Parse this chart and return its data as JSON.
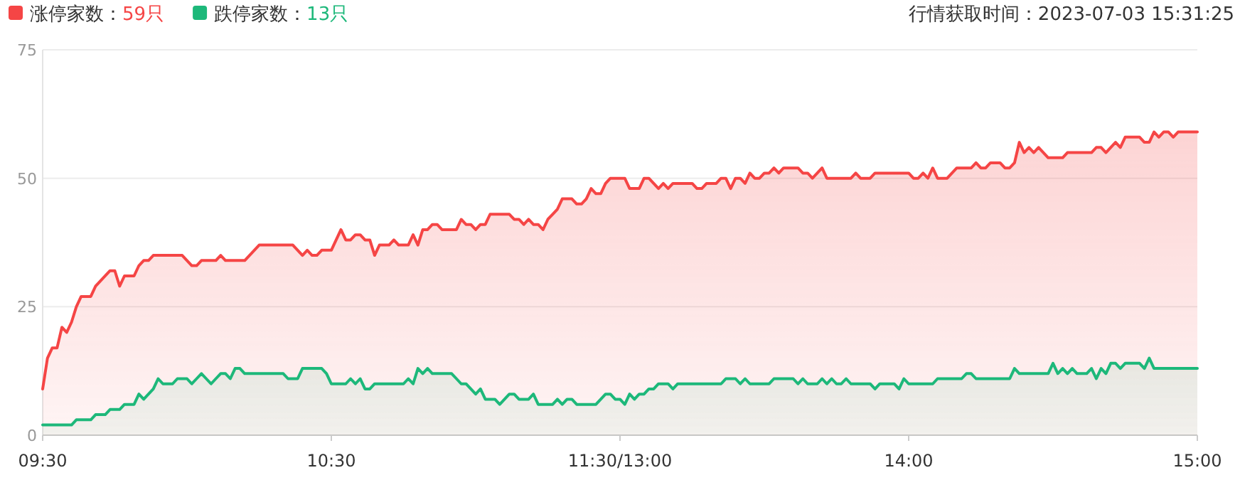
{
  "chart_data": {
    "type": "area",
    "title": "行情获取时间：2023-07-03 15:31:25",
    "categories": [
      "09:30",
      null,
      null,
      null,
      null,
      null,
      null,
      null,
      null,
      null,
      null,
      null,
      null,
      null,
      null,
      null,
      null,
      null,
      null,
      null,
      null,
      null,
      null,
      null,
      null,
      null,
      null,
      null,
      null,
      null,
      null,
      null,
      null,
      null,
      null,
      null,
      null,
      null,
      null,
      null,
      null,
      null,
      null,
      null,
      null,
      null,
      null,
      null,
      null,
      null,
      null,
      null,
      null,
      null,
      null,
      null,
      null,
      null,
      null,
      null,
      "10:30",
      null,
      null,
      null,
      null,
      null,
      null,
      null,
      null,
      null,
      null,
      null,
      null,
      null,
      null,
      null,
      null,
      null,
      null,
      null,
      null,
      null,
      null,
      null,
      null,
      null,
      null,
      null,
      null,
      null,
      null,
      null,
      null,
      null,
      null,
      null,
      null,
      null,
      null,
      null,
      null,
      null,
      null,
      null,
      null,
      null,
      null,
      null,
      null,
      null,
      null,
      null,
      null,
      null,
      null,
      null,
      null,
      null,
      null,
      null,
      "11:30/13:00",
      null,
      null,
      null,
      null,
      null,
      null,
      null,
      null,
      null,
      null,
      null,
      null,
      null,
      null,
      null,
      null,
      null,
      null,
      null,
      null,
      null,
      null,
      null,
      null,
      null,
      null,
      null,
      null,
      null,
      null,
      null,
      null,
      null,
      null,
      null,
      null,
      null,
      null,
      null,
      null,
      null,
      null,
      null,
      null,
      null,
      null,
      null,
      null,
      null,
      null,
      null,
      null,
      null,
      null,
      null,
      null,
      null,
      null,
      null,
      "14:00",
      null,
      null,
      null,
      null,
      null,
      null,
      null,
      null,
      null,
      null,
      null,
      null,
      null,
      null,
      null,
      null,
      null,
      null,
      null,
      null,
      null,
      null,
      null,
      null,
      null,
      null,
      null,
      null,
      null,
      null,
      null,
      null,
      null,
      null,
      null,
      null,
      null,
      null,
      null,
      null,
      null,
      null,
      null,
      null,
      null,
      null,
      null,
      null,
      null,
      null,
      null,
      null,
      null,
      null,
      null,
      null,
      null,
      null,
      null,
      "15:00"
    ],
    "ylim": [
      0,
      75
    ],
    "yticks": [
      0,
      25,
      50,
      75
    ],
    "grid": "y",
    "legend": "top left",
    "series": [
      {
        "name": "涨停家数：59只",
        "color": "#f54545",
        "values": [
          9,
          15,
          17,
          17,
          21,
          20,
          22,
          25,
          27,
          27,
          27,
          29,
          30,
          31,
          32,
          32,
          29,
          31,
          31,
          31,
          33,
          34,
          34,
          35,
          35,
          35,
          35,
          35,
          35,
          35,
          34,
          33,
          33,
          34,
          34,
          34,
          34,
          35,
          34,
          34,
          34,
          34,
          34,
          35,
          36,
          37,
          37,
          37,
          37,
          37,
          37,
          37,
          37,
          36,
          35,
          36,
          35,
          35,
          36,
          36,
          36,
          38,
          40,
          38,
          38,
          39,
          39,
          38,
          38,
          35,
          37,
          37,
          37,
          38,
          37,
          37,
          37,
          39,
          37,
          40,
          40,
          41,
          41,
          40,
          40,
          40,
          40,
          42,
          41,
          41,
          40,
          41,
          41,
          43,
          43,
          43,
          43,
          43,
          42,
          42,
          41,
          42,
          41,
          41,
          40,
          42,
          43,
          44,
          46,
          46,
          46,
          45,
          45,
          46,
          48,
          47,
          47,
          49,
          50,
          50,
          50,
          50,
          48,
          48,
          48,
          50,
          50,
          49,
          48,
          49,
          48,
          49,
          49,
          49,
          49,
          49,
          48,
          48,
          49,
          49,
          49,
          50,
          50,
          48,
          50,
          50,
          49,
          51,
          50,
          50,
          51,
          51,
          52,
          51,
          52,
          52,
          52,
          52,
          51,
          51,
          50,
          51,
          52,
          50,
          50,
          50,
          50,
          50,
          50,
          51,
          50,
          50,
          50,
          51,
          51,
          51,
          51,
          51,
          51,
          51,
          51,
          50,
          50,
          51,
          50,
          52,
          50,
          50,
          50,
          51,
          52,
          52,
          52,
          52,
          53,
          52,
          52,
          53,
          53,
          53,
          52,
          52,
          53,
          57,
          55,
          56,
          55,
          56,
          55,
          54,
          54,
          54,
          54,
          55,
          55,
          55,
          55,
          55,
          55,
          56,
          56,
          55,
          56,
          57,
          56,
          58,
          58,
          58,
          58,
          57,
          57,
          59,
          58,
          59,
          59,
          58,
          59,
          59,
          59,
          59,
          59
        ]
      },
      {
        "name": "跌停家数：13只",
        "color": "#1db87a",
        "values": [
          2,
          2,
          2,
          2,
          2,
          2,
          2,
          3,
          3,
          3,
          3,
          4,
          4,
          4,
          5,
          5,
          5,
          6,
          6,
          6,
          8,
          7,
          8,
          9,
          11,
          10,
          10,
          10,
          11,
          11,
          11,
          10,
          11,
          12,
          11,
          10,
          11,
          12,
          12,
          11,
          13,
          13,
          12,
          12,
          12,
          12,
          12,
          12,
          12,
          12,
          12,
          11,
          11,
          11,
          13,
          13,
          13,
          13,
          13,
          12,
          10,
          10,
          10,
          10,
          11,
          10,
          11,
          9,
          9,
          10,
          10,
          10,
          10,
          10,
          10,
          10,
          11,
          10,
          13,
          12,
          13,
          12,
          12,
          12,
          12,
          12,
          11,
          10,
          10,
          9,
          8,
          9,
          7,
          7,
          7,
          6,
          7,
          8,
          8,
          7,
          7,
          7,
          8,
          6,
          6,
          6,
          6,
          7,
          6,
          7,
          7,
          6,
          6,
          6,
          6,
          6,
          7,
          8,
          8,
          7,
          7,
          6,
          8,
          7,
          8,
          8,
          9,
          9,
          10,
          10,
          10,
          9,
          10,
          10,
          10,
          10,
          10,
          10,
          10,
          10,
          10,
          10,
          11,
          11,
          11,
          10,
          11,
          10,
          10,
          10,
          10,
          10,
          11,
          11,
          11,
          11,
          11,
          10,
          11,
          10,
          10,
          10,
          11,
          10,
          11,
          10,
          10,
          11,
          10,
          10,
          10,
          10,
          10,
          9,
          10,
          10,
          10,
          10,
          9,
          11,
          10,
          10,
          10,
          10,
          10,
          10,
          11,
          11,
          11,
          11,
          11,
          11,
          12,
          12,
          11,
          11,
          11,
          11,
          11,
          11,
          11,
          11,
          13,
          12,
          12,
          12,
          12,
          12,
          12,
          12,
          14,
          12,
          13,
          12,
          13,
          12,
          12,
          12,
          13,
          11,
          13,
          12,
          14,
          14,
          13,
          14,
          14,
          14,
          14,
          13,
          15,
          13,
          13,
          13,
          13,
          13,
          13,
          13,
          13,
          13,
          13
        ]
      }
    ]
  }
}
